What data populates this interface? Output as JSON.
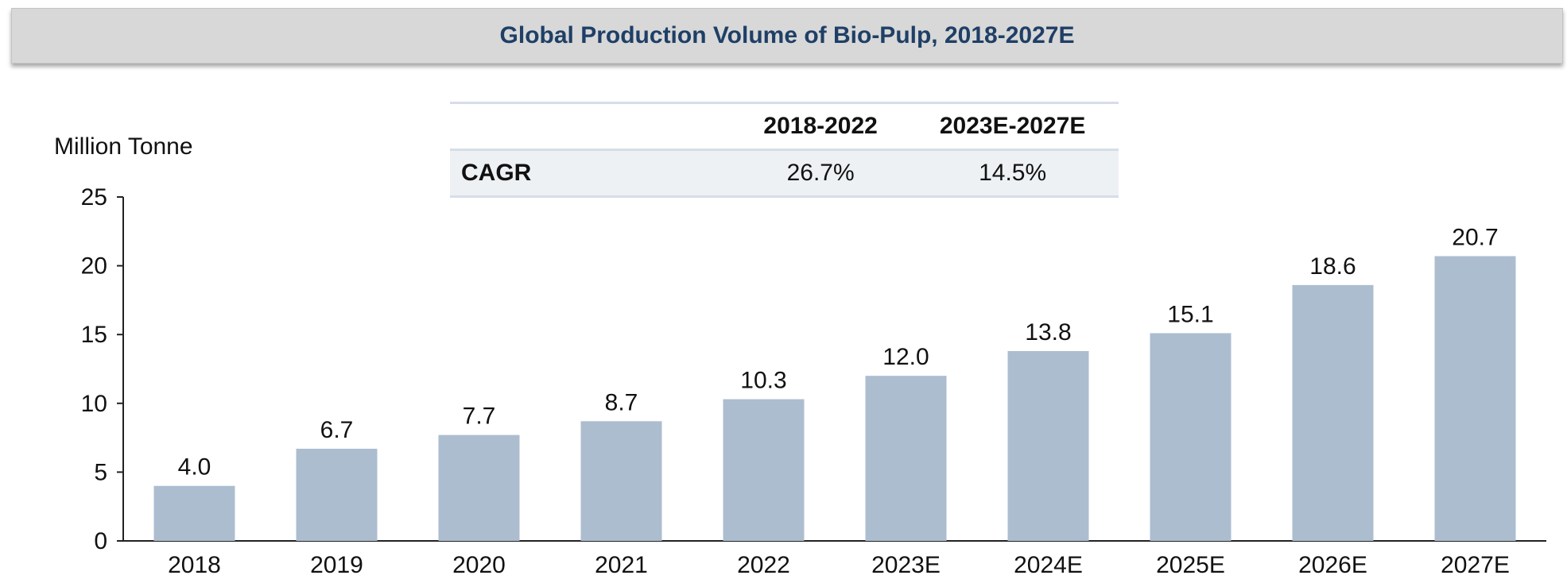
{
  "title": "Global Production Volume of Bio-Pulp, 2018-2027E",
  "cagr_table": {
    "headers": [
      "",
      "2018-2022",
      "2023E-2027E"
    ],
    "row_label": "CAGR",
    "values": [
      "26.7%",
      "14.5%"
    ]
  },
  "chart_data": {
    "type": "bar",
    "title": "Global Production Volume of Bio-Pulp, 2018-2027E",
    "ylabel": "Million Tonne",
    "xlabel": "",
    "categories": [
      "2018",
      "2019",
      "2020",
      "2021",
      "2022",
      "2023E",
      "2024E",
      "2025E",
      "2026E",
      "2027E"
    ],
    "values": [
      4.0,
      6.7,
      7.7,
      8.7,
      10.3,
      12.0,
      13.8,
      15.1,
      18.6,
      20.7
    ],
    "value_labels": [
      "4.0",
      "6.7",
      "7.7",
      "8.7",
      "10.3",
      "12.0",
      "13.8",
      "15.1",
      "18.6",
      "20.7"
    ],
    "ylim": [
      0,
      25
    ],
    "yticks": [
      "0",
      "5",
      "10",
      "15",
      "20",
      "25"
    ],
    "grid": false,
    "bar_color": "#adbdd0"
  }
}
